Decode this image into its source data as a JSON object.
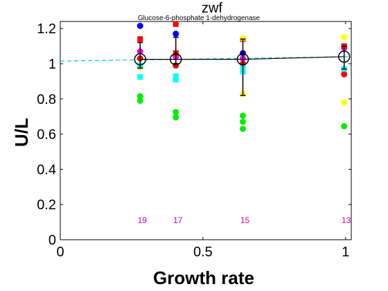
{
  "chart_data": {
    "type": "scatter",
    "title": "zwf",
    "subtitle": "Glucose-6-phosphate 1-dehydrogenase",
    "xlabel": "Growth rate",
    "ylabel": "U/L",
    "xlim": [
      0,
      1.02
    ],
    "ylim": [
      0,
      1.24
    ],
    "xticks": [
      {
        "value": 0,
        "label": "0"
      },
      {
        "value": 0.5,
        "label": "0.5"
      },
      {
        "value": 1,
        "label": "1"
      }
    ],
    "yticks": [
      {
        "value": 0,
        "label": "0"
      },
      {
        "value": 0.2,
        "label": "0.2"
      },
      {
        "value": 0.4,
        "label": "0.4"
      },
      {
        "value": 0.6,
        "label": "0.6"
      },
      {
        "value": 0.8,
        "label": "0.8"
      },
      {
        "value": 1,
        "label": "1"
      },
      {
        "value": 1.2,
        "label": "1.2"
      }
    ],
    "grid": false,
    "legend": "none",
    "series": [
      {
        "color": "#0000ff",
        "marker": "circle",
        "points": [
          [
            0.28,
            1.215
          ],
          [
            0.405,
            1.17
          ],
          [
            0.64,
            1.06
          ]
        ]
      },
      {
        "color": "#ff00ff",
        "marker": "circle",
        "points": [
          [
            0.28,
            1.07
          ],
          [
            0.405,
            1.04
          ],
          [
            0.64,
            1.03
          ],
          [
            0.995,
            1.09
          ]
        ]
      },
      {
        "color": "#ff0000",
        "marker": "circle",
        "points": [
          [
            0.28,
            1.03
          ],
          [
            0.405,
            0.99
          ],
          [
            0.64,
            1.0
          ],
          [
            0.995,
            0.94
          ]
        ]
      },
      {
        "color": "#ff0000",
        "marker": "square",
        "points": [
          [
            0.28,
            1.14
          ],
          [
            0.405,
            1.225
          ],
          [
            0.405,
            1.06
          ],
          [
            0.64,
            1.14
          ],
          [
            0.995,
            1.1
          ]
        ]
      },
      {
        "color": "#ffff00",
        "marker": "circle",
        "points": [
          [
            0.28,
            0.98
          ],
          [
            0.64,
            1.145
          ],
          [
            0.64,
            0.83
          ],
          [
            0.995,
            1.15
          ],
          [
            0.995,
            0.78
          ]
        ]
      },
      {
        "color": "#00ffff",
        "marker": "square",
        "points": [
          [
            0.28,
            0.925
          ],
          [
            0.28,
            0.99
          ],
          [
            0.405,
            0.91
          ],
          [
            0.405,
            0.93
          ],
          [
            0.64,
            0.955
          ],
          [
            0.64,
            0.975
          ],
          [
            0.995,
            0.97
          ]
        ]
      },
      {
        "color": "#00ee00",
        "marker": "circle",
        "points": [
          [
            0.28,
            0.815
          ],
          [
            0.28,
            0.79
          ],
          [
            0.405,
            0.725
          ],
          [
            0.405,
            0.695
          ],
          [
            0.64,
            0.705
          ],
          [
            0.64,
            0.67
          ],
          [
            0.64,
            0.63
          ],
          [
            0.995,
            0.645
          ]
        ]
      }
    ],
    "mean": {
      "color": "#000000",
      "points": [
        {
          "x": 0.28,
          "y": 1.025,
          "low": 0.975,
          "high": 1.12
        },
        {
          "x": 0.405,
          "y": 1.025,
          "low": 1.0,
          "high": 1.15
        },
        {
          "x": 0.64,
          "y": 1.025,
          "low": 0.82,
          "high": 1.14
        },
        {
          "x": 0.995,
          "y": 1.04,
          "low": 0.97,
          "high": 1.1
        }
      ]
    },
    "fit_line": {
      "color": "#00cccc",
      "x": [
        0,
        1.02
      ],
      "y": [
        1.015,
        1.04
      ]
    },
    "counts": {
      "color": "#cc00cc",
      "y": 0.11,
      "items": [
        {
          "x": 0.28,
          "label": "19"
        },
        {
          "x": 0.405,
          "label": "17"
        },
        {
          "x": 0.64,
          "label": "15"
        },
        {
          "x": 0.995,
          "label": "13"
        }
      ]
    }
  }
}
